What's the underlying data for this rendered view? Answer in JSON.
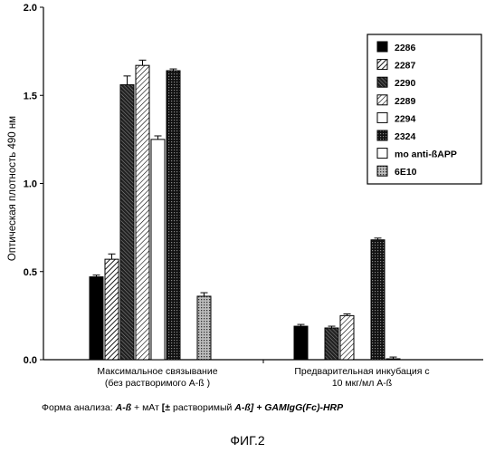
{
  "chart_data": {
    "type": "bar",
    "ylabel": "Оптическая плотность 490 нм",
    "ylim": [
      0,
      2.0
    ],
    "yticks": [
      "0.0",
      "0.5",
      "1.0",
      "1.5",
      "2.0"
    ],
    "groups": [
      [
        "Максимальное связывание",
        "(без растворимого А-ß )"
      ],
      [
        "Предварительная инкубация с",
        "10 мкг/мл  А-ß"
      ]
    ],
    "series": [
      {
        "name": "2286",
        "pattern": "solid",
        "values": [
          0.47,
          0.19
        ]
      },
      {
        "name": "2287",
        "pattern": "diag",
        "values": [
          0.57,
          null
        ]
      },
      {
        "name": "2290",
        "pattern": "dark-diag",
        "values": [
          1.56,
          0.18
        ]
      },
      {
        "name": "2289",
        "pattern": "diag-light",
        "values": [
          1.67,
          0.25
        ]
      },
      {
        "name": "2294",
        "pattern": "white",
        "values": [
          1.25,
          null
        ]
      },
      {
        "name": "2324",
        "pattern": "check",
        "values": [
          1.64,
          0.68
        ]
      },
      {
        "name": "mo anti-ßAPP",
        "pattern": "white",
        "values": [
          null,
          0.005
        ]
      },
      {
        "name": "6E10",
        "pattern": "dots",
        "values": [
          0.36,
          null
        ]
      }
    ],
    "errors": [
      [
        0.01,
        0.01
      ],
      [
        0.03,
        null
      ],
      [
        0.05,
        0.01
      ],
      [
        0.03,
        0.01
      ],
      [
        0.02,
        null
      ],
      [
        0.01,
        0.01
      ],
      [
        null,
        0.01
      ],
      [
        0.02,
        null
      ]
    ],
    "legend_position": "top-right"
  },
  "caption": {
    "prefix": "Форма анализа: ",
    "part1": "А-ß",
    "part2": " + мАт ",
    "part3": "[±",
    "part4": " растворимый ",
    "part5": "А-ß] + GAMIgG(Fc)-HRP"
  },
  "figure_label": "ФИГ.2"
}
